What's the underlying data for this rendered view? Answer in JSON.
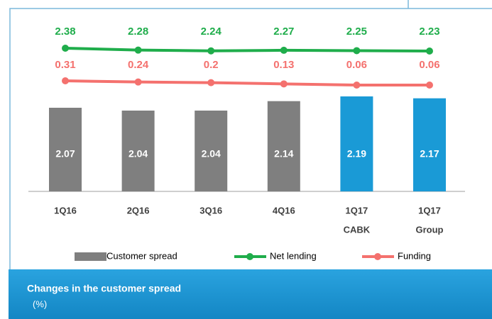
{
  "chart_data": {
    "type": "bar",
    "title": "Changes in the customer spread",
    "subtitle": "(%)",
    "categories": [
      [
        "1Q16"
      ],
      [
        "2Q16"
      ],
      [
        "3Q16"
      ],
      [
        "4Q16"
      ],
      [
        "1Q17",
        "CABK"
      ],
      [
        "1Q17",
        "Group"
      ]
    ],
    "series": [
      {
        "name": "Customer spread",
        "type": "bar",
        "colors": [
          "#7f7f7f",
          "#7f7f7f",
          "#7f7f7f",
          "#7f7f7f",
          "#1a9ad6",
          "#1a9ad6"
        ],
        "values": [
          2.07,
          2.04,
          2.04,
          2.14,
          2.19,
          2.17
        ]
      },
      {
        "name": "Net lending",
        "type": "line",
        "color": "#1fad4b",
        "values": [
          2.38,
          2.28,
          2.24,
          2.27,
          2.25,
          2.23
        ]
      },
      {
        "name": "Funding",
        "type": "line",
        "color": "#f4716e",
        "values": [
          0.31,
          0.24,
          0.2,
          0.13,
          0.06,
          0.06
        ]
      }
    ]
  }
}
